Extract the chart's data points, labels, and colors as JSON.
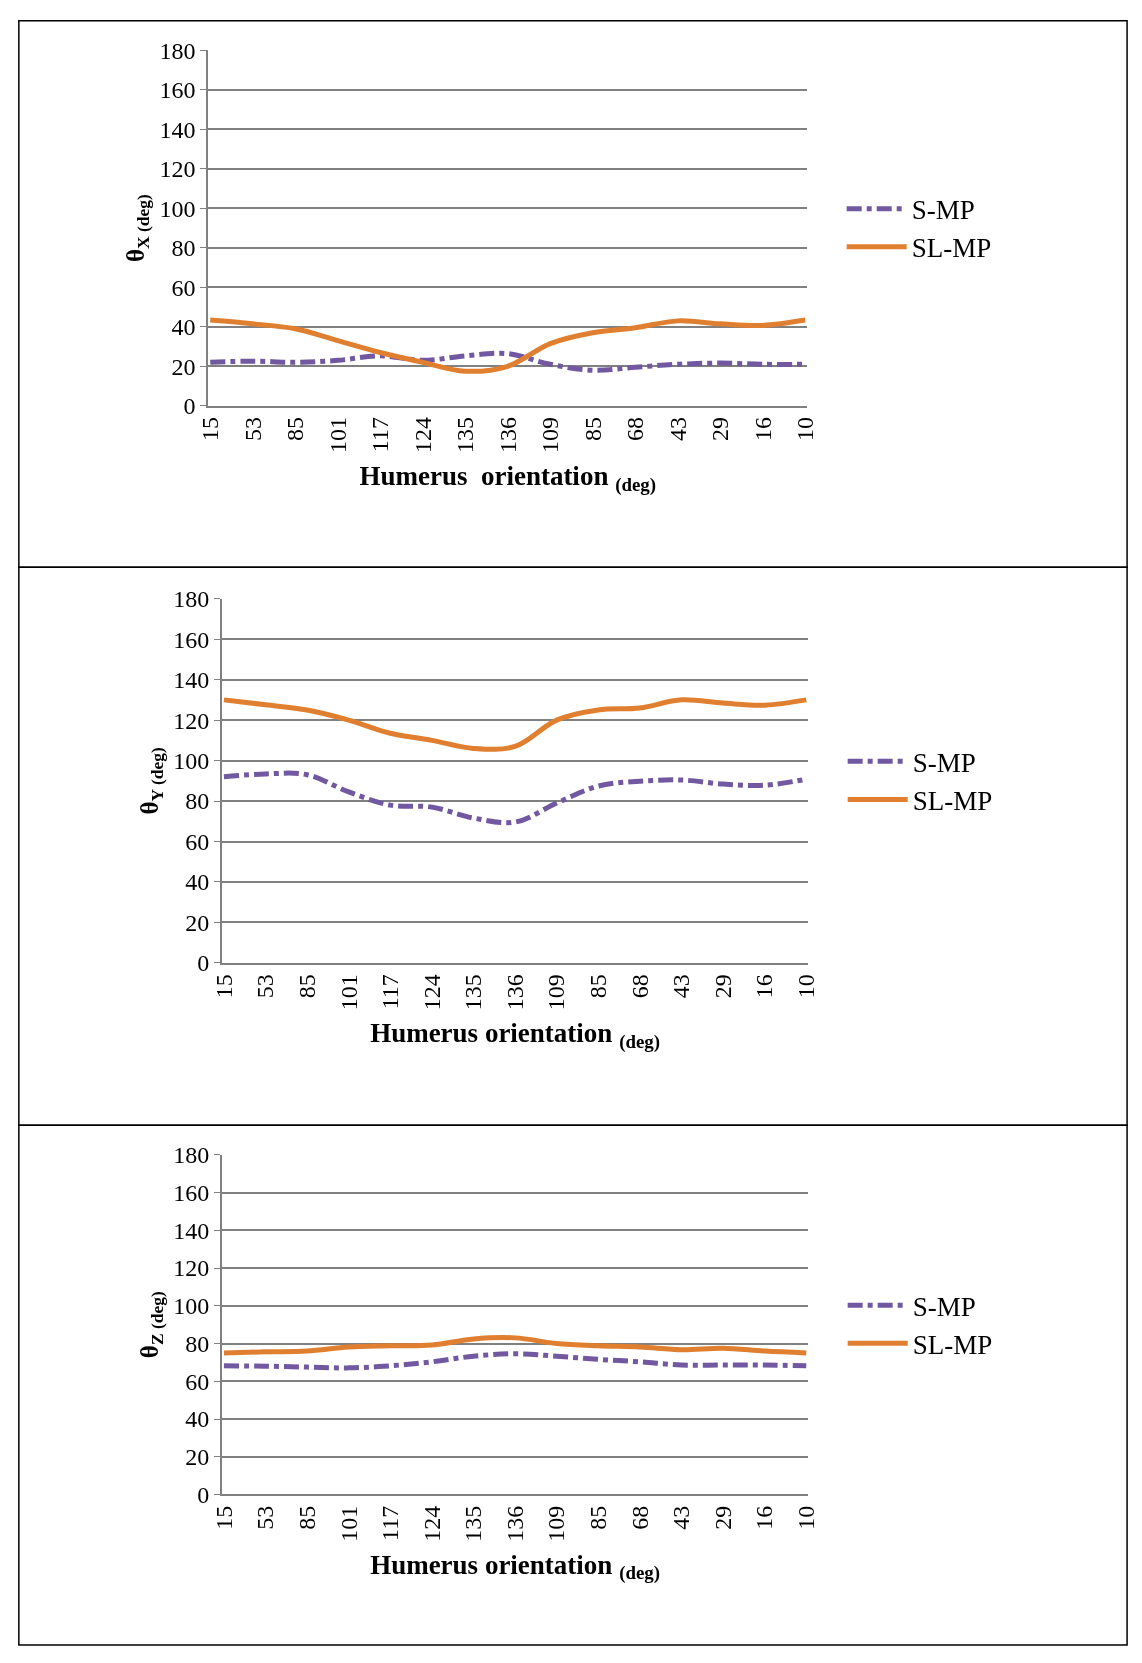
{
  "chart_data": [
    {
      "type": "line",
      "xlabel": "Humerus  orientation $_{(deg)}$",
      "ylabel": "θ$_{X (deg)}$",
      "categories": [
        "15",
        "53",
        "85",
        "101",
        "117",
        "124",
        "135",
        "136",
        "109",
        "85",
        "68",
        "43",
        "29",
        "16",
        "10"
      ],
      "ylim": [
        0,
        180
      ],
      "yticks": [
        0,
        20,
        40,
        60,
        80,
        100,
        120,
        140,
        160,
        180
      ],
      "grid": "y",
      "legend": "right",
      "series": [
        {
          "name": "S-MP",
          "color": "#7158a0",
          "line_style": "dashed",
          "values": [
            22,
            22.6,
            22,
            23,
            25.3,
            23,
            25.3,
            26.4,
            21,
            18,
            19.5,
            21,
            21.6,
            21,
            21
          ]
        },
        {
          "name": "SL-MP",
          "color": "#e07f30",
          "line_style": "solid",
          "values": [
            43.4,
            41.5,
            39,
            33,
            27,
            22,
            17.5,
            20,
            31.5,
            37,
            39.5,
            43,
            41.5,
            40.7,
            43.4
          ]
        }
      ]
    },
    {
      "type": "line",
      "xlabel": "Humerus orientation $_{(deg)}$",
      "ylabel": "θ$_{Y (deg)}$",
      "categories": [
        "15",
        "53",
        "85",
        "101",
        "117",
        "124",
        "135",
        "136",
        "109",
        "85",
        "68",
        "43",
        "29",
        "16",
        "10"
      ],
      "ylim": [
        0,
        180
      ],
      "yticks": [
        0,
        20,
        40,
        60,
        80,
        100,
        120,
        140,
        160,
        180
      ],
      "grid": "y",
      "legend": "right",
      "series": [
        {
          "name": "S-MP",
          "color": "#7158a0",
          "line_style": "dashed",
          "values": [
            92,
            93.4,
            93,
            84.5,
            78,
            77,
            71.6,
            69.6,
            79,
            87.4,
            89.8,
            90.4,
            88.4,
            87.8,
            90.8
          ]
        },
        {
          "name": "SL-MP",
          "color": "#e07f30",
          "line_style": "solid",
          "values": [
            130,
            127.6,
            125,
            120,
            113.5,
            110,
            106,
            107,
            120,
            125,
            126,
            130,
            128.4,
            127.4,
            130
          ]
        }
      ]
    },
    {
      "type": "line",
      "xlabel": "Humerus orientation $_{(deg)}$",
      "ylabel": "θ$_{Z (deg)}$",
      "categories": [
        "15",
        "53",
        "85",
        "101",
        "117",
        "124",
        "135",
        "136",
        "109",
        "85",
        "68",
        "43",
        "29",
        "16",
        "10"
      ],
      "ylim": [
        0,
        180
      ],
      "yticks": [
        0,
        20,
        40,
        60,
        80,
        100,
        120,
        140,
        160,
        180
      ],
      "grid": "y",
      "legend": "right",
      "series": [
        {
          "name": "S-MP",
          "color": "#7158a0",
          "line_style": "dashed",
          "values": [
            68.2,
            68,
            67.5,
            67.1,
            68.2,
            70.3,
            73.3,
            74.6,
            73.3,
            71.6,
            70.3,
            68.6,
            68.6,
            68.6,
            68.2
          ]
        },
        {
          "name": "SL-MP",
          "color": "#e07f30",
          "line_style": "solid",
          "values": [
            75,
            75.6,
            76,
            78.2,
            78.8,
            79.2,
            82.4,
            83,
            80,
            78.8,
            78.2,
            76.7,
            77.5,
            76,
            75
          ]
        }
      ]
    }
  ]
}
